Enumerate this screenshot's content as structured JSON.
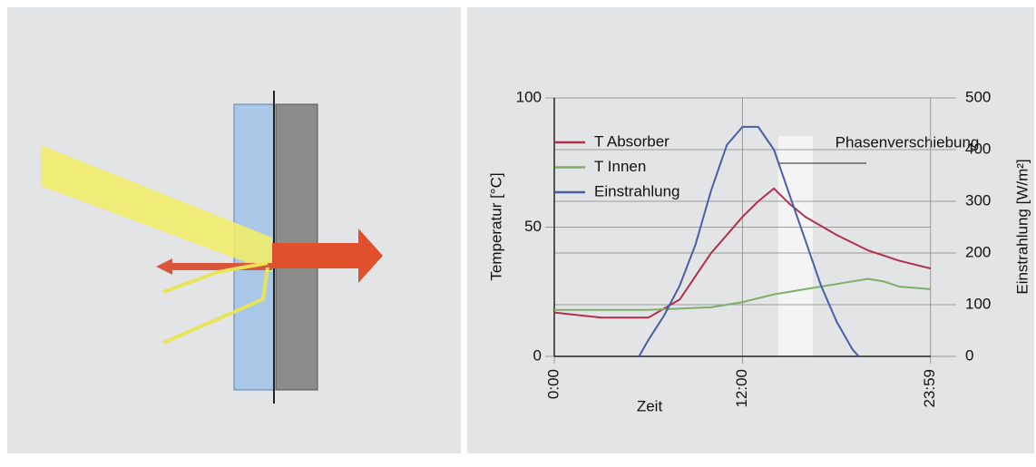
{
  "chart_data": {
    "type": "line",
    "xlabel": "Zeit",
    "ylabel": "Temperatur [°C]",
    "y2label": "Einstrahlung [W/m²]",
    "annotation": "Phasenverschiebung",
    "xlim": [
      0,
      24
    ],
    "xticks": [
      {
        "value": 0,
        "label": "0:00"
      },
      {
        "value": 12,
        "label": "12:00"
      },
      {
        "value": 23.98,
        "label": "23:59"
      }
    ],
    "ylim": [
      0,
      100
    ],
    "yticks": [
      0,
      50,
      100
    ],
    "y2lim": [
      0,
      500
    ],
    "y2ticks": [
      0,
      100,
      200,
      300,
      400,
      500
    ],
    "grid": true,
    "legend": "upper left",
    "series": [
      {
        "name": "T Absorber",
        "color": "#b22e4c",
        "x": [
          0,
          3,
          6,
          8,
          9,
          10,
          11,
          12,
          13,
          14,
          15,
          16,
          18,
          20,
          22,
          24
        ],
        "values": [
          17,
          15,
          15,
          22,
          31,
          40,
          47,
          54,
          60,
          65,
          59,
          54,
          47,
          41,
          37,
          34
        ]
      },
      {
        "name": "T Innen",
        "color": "#7fae6a",
        "x": [
          0,
          6,
          10,
          12,
          14,
          16,
          18,
          20,
          21,
          22,
          24
        ],
        "values": [
          18,
          18,
          19,
          21,
          24,
          26,
          28,
          30,
          29,
          27,
          26
        ]
      },
      {
        "name": "Einstrahlung",
        "color": "#4a5ea8",
        "axis": "y2",
        "x": [
          5.4,
          6,
          7,
          8,
          9,
          10,
          11,
          12,
          13,
          14,
          15,
          16,
          17,
          18,
          19,
          19.4
        ],
        "values": [
          0,
          32,
          79,
          137,
          216,
          321,
          409,
          444,
          444,
          400,
          312,
          225,
          137,
          67,
          14,
          0
        ]
      }
    ]
  }
}
